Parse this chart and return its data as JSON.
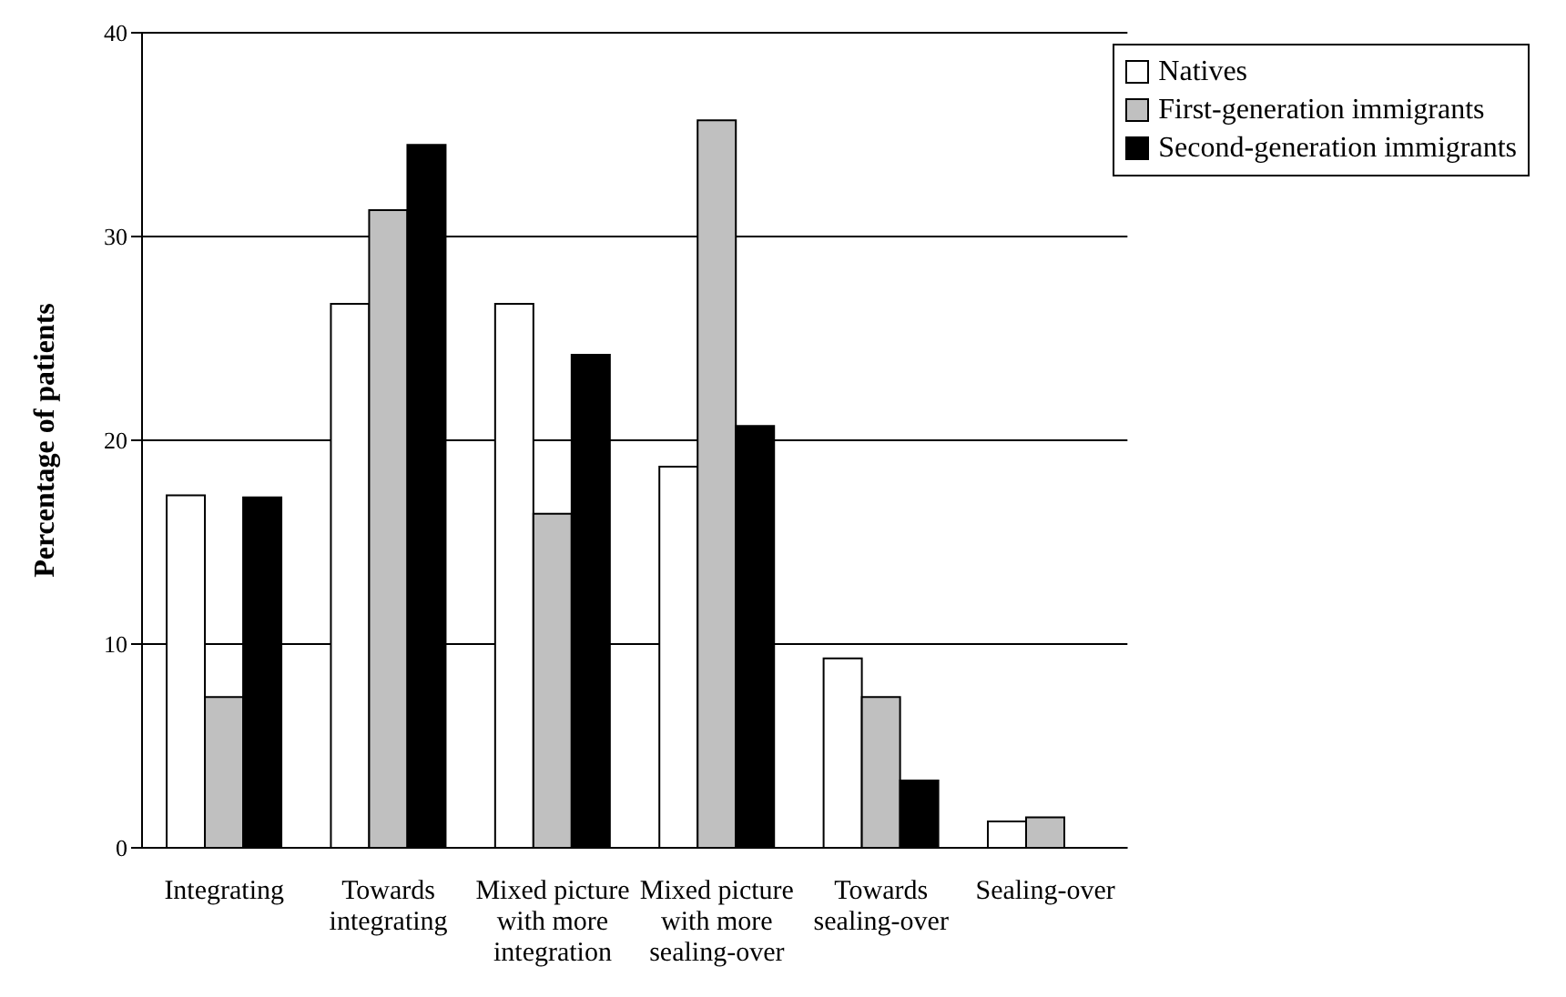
{
  "chart_data": {
    "type": "bar",
    "ylabel": "Percentage of patients",
    "categories": [
      "Integrating",
      "Towards integrating",
      "Mixed picture with more integration",
      "Mixed picture with more sealing-over",
      "Towards sealing-over",
      "Sealing-over"
    ],
    "series": [
      {
        "name": "Natives",
        "color": "#ffffff",
        "values": [
          17.3,
          26.7,
          26.7,
          18.7,
          9.3,
          1.3
        ]
      },
      {
        "name": "First-generation immigrants",
        "color": "#c0c0c0",
        "values": [
          7.4,
          31.3,
          16.4,
          35.7,
          7.4,
          1.5
        ]
      },
      {
        "name": "Second-generation immigrants",
        "color": "#000000",
        "values": [
          17.2,
          34.5,
          24.2,
          20.7,
          3.3,
          0
        ]
      }
    ],
    "ylim": [
      0,
      40
    ],
    "yticks": [
      0,
      10,
      20,
      30,
      40
    ],
    "grid": "y",
    "legend": "top right"
  }
}
